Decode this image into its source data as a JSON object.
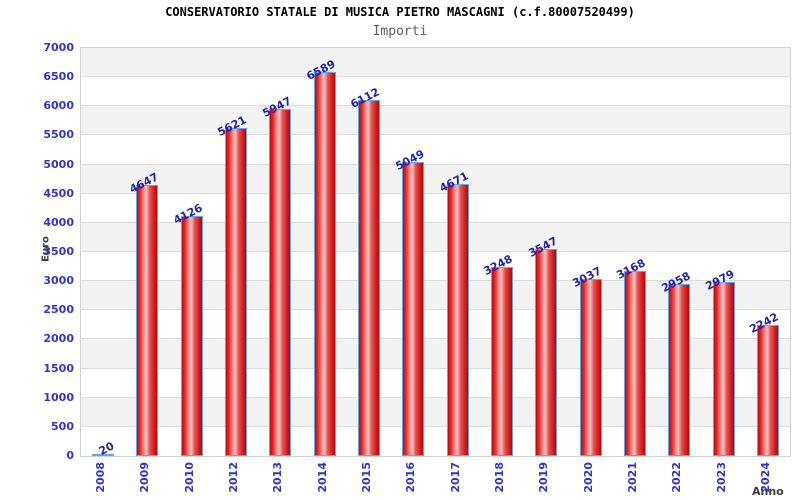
{
  "header": {
    "title": "CONSERVATORIO STATALE DI MUSICA PIETRO MASCAGNI (c.f.80007520499)",
    "subtitle": "Importi"
  },
  "chart_data": {
    "type": "bar",
    "title": "CONSERVATORIO STATALE DI MUSICA PIETRO MASCAGNI (c.f.80007520499)",
    "subtitle": "Importi",
    "xlabel": "Anno",
    "ylabel": "Euro",
    "categories": [
      "2008",
      "2009",
      "2010",
      "2012",
      "2013",
      "2014",
      "2015",
      "2016",
      "2017",
      "2018",
      "2019",
      "2020",
      "2021",
      "2022",
      "2023",
      "2024"
    ],
    "values": [
      20,
      4647,
      4126,
      5621,
      5947,
      6589,
      6112,
      5049,
      4671,
      3248,
      3547,
      3037,
      3168,
      2958,
      2979,
      2242
    ],
    "ylim": [
      0,
      7000
    ],
    "ytick_step": 500,
    "grid": true,
    "legend_position": "none",
    "bands_alternating": true,
    "colors": {
      "bar_fill_main": "#e62525",
      "bar_fill_highlight": "#f4bcbc",
      "bar_border": "#5ea8ec",
      "tick_label": "#3232cf",
      "value_label": "#2323a8",
      "axis_title": "#3c3c3c",
      "title": "#000000",
      "subtitle": "#606060",
      "band": "#f2f2f2",
      "gridline": "#dcdcdc",
      "plot_border": "#d2d2d2",
      "background": "#ffffff"
    }
  }
}
